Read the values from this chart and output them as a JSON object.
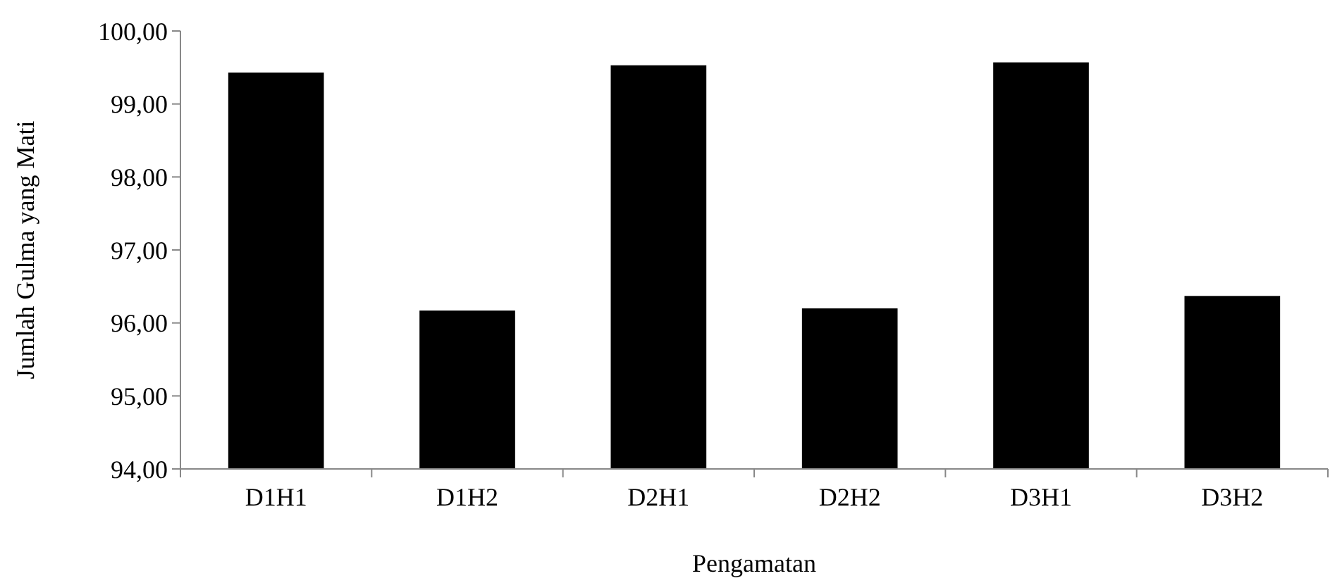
{
  "chart_data": {
    "type": "bar",
    "xlabel": "Pengamatan",
    "ylabel": "Jumlah Gulma yang Mati",
    "categories": [
      "D1H1",
      "D1H2",
      "D2H1",
      "D2H2",
      "D3H1",
      "D3H2"
    ],
    "values": [
      99.43,
      96.17,
      99.53,
      96.2,
      99.57,
      96.37
    ],
    "color": "#000000",
    "ylim": [
      94,
      100
    ],
    "yticks": [
      {
        "value": 94,
        "label": "94,00"
      },
      {
        "value": 95,
        "label": "95,00"
      },
      {
        "value": 96,
        "label": "96,00"
      },
      {
        "value": 97,
        "label": "97,00"
      },
      {
        "value": 98,
        "label": "98,00"
      },
      {
        "value": 99,
        "label": "99,00"
      },
      {
        "value": 100,
        "label": "100,00"
      }
    ]
  }
}
